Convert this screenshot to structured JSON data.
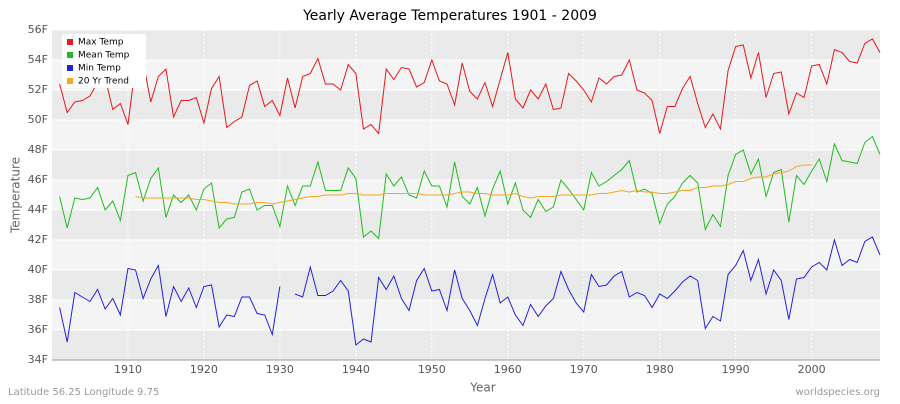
{
  "chart_data": {
    "type": "line",
    "title": "Yearly Average Temperatures 1901 - 2009",
    "x_label": "Year",
    "y_label": "Temperature",
    "footer_left": "Latitude 56.25 Longitude 9.75",
    "footer_right": "worldspecies.org",
    "xlim": [
      1900,
      2009
    ],
    "ylim": [
      34,
      56
    ],
    "xticks": [
      1910,
      1920,
      1930,
      1940,
      1950,
      1960,
      1970,
      1980,
      1990,
      2000
    ],
    "yticks": [
      {
        "value": 34,
        "label": "34F"
      },
      {
        "value": 36,
        "label": "36F"
      },
      {
        "value": 38,
        "label": "38F"
      },
      {
        "value": 40,
        "label": "40F"
      },
      {
        "value": 42,
        "label": "42F"
      },
      {
        "value": 44,
        "label": "44F"
      },
      {
        "value": 46,
        "label": "46F"
      },
      {
        "value": 48,
        "label": "48F"
      },
      {
        "value": 50,
        "label": "50F"
      },
      {
        "value": 52,
        "label": "52F"
      },
      {
        "value": 54,
        "label": "54F"
      },
      {
        "value": 56,
        "label": "56F"
      }
    ],
    "grid": true,
    "legend": "top-left",
    "x": [
      1901,
      1902,
      1903,
      1904,
      1905,
      1906,
      1907,
      1908,
      1909,
      1910,
      1911,
      1912,
      1913,
      1914,
      1915,
      1916,
      1917,
      1918,
      1919,
      1920,
      1921,
      1922,
      1923,
      1924,
      1925,
      1926,
      1927,
      1928,
      1929,
      1930,
      1931,
      1932,
      1933,
      1934,
      1935,
      1936,
      1937,
      1938,
      1939,
      1940,
      1941,
      1942,
      1943,
      1944,
      1945,
      1946,
      1947,
      1948,
      1949,
      1950,
      1951,
      1952,
      1953,
      1954,
      1955,
      1956,
      1957,
      1958,
      1959,
      1960,
      1961,
      1962,
      1963,
      1964,
      1965,
      1966,
      1967,
      1968,
      1969,
      1970,
      1971,
      1972,
      1973,
      1974,
      1975,
      1976,
      1977,
      1978,
      1979,
      1980,
      1981,
      1982,
      1983,
      1984,
      1985,
      1986,
      1987,
      1988,
      1989,
      1990,
      1991,
      1992,
      1993,
      1994,
      1995,
      1996,
      1997,
      1998,
      1999,
      2000,
      2001,
      2002,
      2003,
      2004,
      2005,
      2006,
      2007,
      2008,
      2009
    ],
    "series": [
      {
        "name": "Max Temp",
        "color": "#e41a1c",
        "values": [
          52.4,
          50.5,
          51.2,
          51.3,
          51.6,
          52.5,
          52.8,
          50.7,
          51.1,
          49.7,
          53.7,
          53.9,
          51.2,
          52.9,
          53.4,
          50.2,
          51.3,
          51.3,
          51.5,
          49.8,
          52.1,
          52.9,
          49.5,
          49.9,
          50.2,
          52.3,
          52.6,
          50.9,
          51.3,
          50.3,
          52.8,
          50.8,
          52.9,
          53.1,
          54.1,
          52.4,
          52.4,
          52.0,
          53.7,
          53.1,
          49.4,
          49.7,
          49.1,
          53.4,
          52.7,
          53.5,
          53.4,
          52.2,
          52.5,
          54.0,
          52.6,
          52.4,
          51.0,
          53.8,
          51.9,
          51.4,
          52.5,
          50.9,
          52.7,
          54.5,
          51.4,
          50.8,
          52.0,
          51.4,
          52.4,
          50.7,
          50.8,
          53.1,
          52.6,
          52.0,
          51.2,
          52.8,
          52.4,
          52.9,
          53.0,
          54.0,
          52.0,
          51.8,
          51.3,
          49.1,
          50.9,
          50.9,
          52.1,
          52.9,
          51.1,
          49.5,
          50.4,
          49.4,
          53.3,
          54.9,
          55.0,
          52.8,
          54.5,
          51.5,
          53.1,
          53.2,
          50.4,
          51.8,
          51.5,
          53.6,
          53.7,
          52.4,
          54.7,
          54.5,
          53.9,
          53.8,
          55.1,
          55.4,
          54.5
        ]
      },
      {
        "name": "Mean Temp",
        "color": "#22bb22",
        "values": [
          44.9,
          42.8,
          44.8,
          44.7,
          44.8,
          45.5,
          44.0,
          44.6,
          43.3,
          46.3,
          46.5,
          44.6,
          46.1,
          46.8,
          43.5,
          45.0,
          44.5,
          45.0,
          44.0,
          45.4,
          45.8,
          42.8,
          43.4,
          43.5,
          45.2,
          45.4,
          44.0,
          44.3,
          44.3,
          42.9,
          45.6,
          44.3,
          45.6,
          45.6,
          47.2,
          45.3,
          45.3,
          45.3,
          46.8,
          46.1,
          42.2,
          42.6,
          42.1,
          46.4,
          45.6,
          46.2,
          45.0,
          44.8,
          46.6,
          45.6,
          45.6,
          44.2,
          47.2,
          44.9,
          44.4,
          45.5,
          43.6,
          45.4,
          46.6,
          44.4,
          45.8,
          44.0,
          43.5,
          44.7,
          43.9,
          44.2,
          46.0,
          45.4,
          44.7,
          44.0,
          46.5,
          45.6,
          45.9,
          46.3,
          46.7,
          47.3,
          45.2,
          45.4,
          45.1,
          43.1,
          44.4,
          44.9,
          45.8,
          46.3,
          45.8,
          42.7,
          43.7,
          42.9,
          46.3,
          47.7,
          48.0,
          46.4,
          47.4,
          44.9,
          46.5,
          46.7,
          43.2,
          46.3,
          45.7,
          46.6,
          47.4,
          45.9,
          48.4,
          47.3,
          47.2,
          47.1,
          48.5,
          48.9,
          47.7
        ]
      },
      {
        "name": "Min Temp",
        "color": "#2222dd",
        "values": [
          37.5,
          35.2,
          38.5,
          38.2,
          37.9,
          38.7,
          37.4,
          38.1,
          37.0,
          40.1,
          40.0,
          38.1,
          39.4,
          40.3,
          36.9,
          38.9,
          37.9,
          38.8,
          37.5,
          38.9,
          39.0,
          36.2,
          37.0,
          36.9,
          38.2,
          38.2,
          37.1,
          37.0,
          35.7,
          38.9,
          null,
          38.4,
          38.2,
          40.2,
          38.3,
          38.3,
          38.6,
          39.3,
          38.6,
          35.0,
          35.4,
          35.2,
          39.5,
          38.7,
          39.6,
          38.1,
          37.3,
          39.3,
          40.1,
          38.6,
          38.7,
          37.3,
          40.0,
          38.1,
          37.3,
          36.3,
          38.1,
          39.7,
          37.8,
          38.2,
          37.0,
          36.3,
          37.7,
          36.9,
          37.6,
          38.1,
          39.9,
          38.7,
          37.8,
          37.2,
          39.7,
          38.9,
          39.0,
          39.6,
          39.9,
          38.2,
          38.5,
          38.3,
          37.5,
          38.4,
          38.1,
          38.6,
          39.2,
          39.6,
          39.3,
          36.1,
          36.9,
          36.6,
          39.7,
          40.3,
          41.3,
          39.3,
          40.7,
          38.4,
          40.0,
          39.3,
          36.7,
          39.4,
          39.5,
          40.2,
          40.5,
          40.0,
          42.0,
          40.3,
          40.7,
          40.5,
          41.9,
          42.2,
          41.0
        ]
      },
      {
        "name": "20 Yr Trend",
        "color": "#f5a623",
        "values": [
          null,
          null,
          null,
          null,
          null,
          null,
          null,
          null,
          null,
          null,
          44.9,
          44.8,
          44.8,
          44.8,
          44.8,
          44.8,
          44.8,
          44.8,
          44.7,
          44.7,
          44.6,
          44.5,
          44.5,
          44.4,
          44.4,
          44.4,
          44.5,
          44.5,
          44.4,
          44.5,
          44.6,
          44.7,
          44.8,
          44.9,
          44.9,
          45.0,
          45.0,
          45.0,
          45.1,
          45.1,
          45.0,
          45.0,
          45.0,
          45.1,
          45.1,
          45.1,
          45.1,
          45.1,
          45.0,
          45.0,
          45.0,
          45.0,
          45.1,
          45.2,
          45.2,
          45.1,
          45.1,
          45.0,
          45.0,
          45.0,
          45.1,
          44.9,
          44.8,
          44.9,
          44.9,
          44.9,
          45.0,
          45.0,
          45.0,
          45.0,
          45.0,
          45.1,
          45.1,
          45.2,
          45.3,
          45.2,
          45.3,
          45.2,
          45.2,
          45.1,
          45.1,
          45.2,
          45.3,
          45.3,
          45.5,
          45.5,
          45.6,
          45.6,
          45.7,
          45.9,
          45.9,
          46.1,
          46.2,
          46.2,
          46.4,
          46.5,
          46.6,
          46.9,
          47.0,
          47.0,
          null,
          null,
          null,
          null,
          null,
          null,
          null,
          null,
          null
        ]
      }
    ]
  }
}
